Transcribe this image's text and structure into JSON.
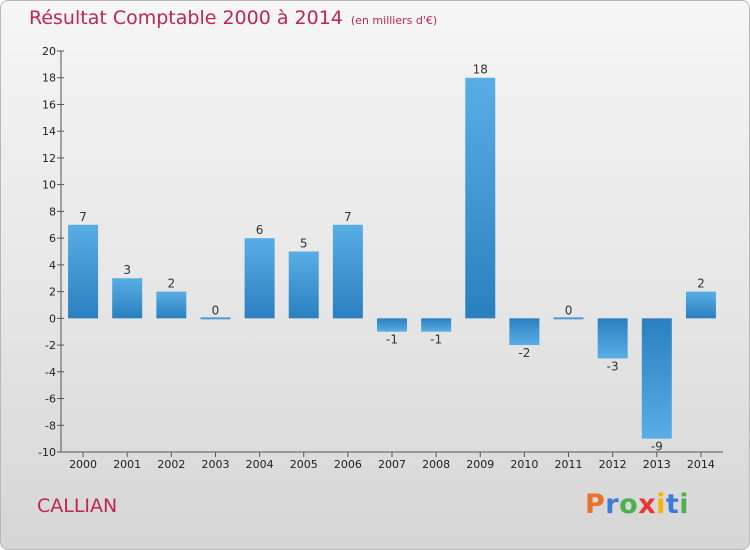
{
  "header": {
    "title": "Résultat Comptable 2000 à 2014",
    "subtitle": "(en milliers d'€)"
  },
  "footer": {
    "commune": "CALLIAN",
    "logo_letters": [
      "P",
      "r",
      "o",
      "x",
      "i",
      "t",
      "i"
    ],
    "logo_colors": [
      "#e8702a",
      "#3a7bd5",
      "#4caf50",
      "#e53935",
      "#f5b400",
      "#3a7bd5",
      "#4caf50"
    ]
  },
  "colors": {
    "title": "#c0264f",
    "bar_light": "#5aaee6",
    "bar_dark": "#2a7fbf"
  },
  "chart_data": {
    "type": "bar",
    "title": "Résultat Comptable 2000 à 2014",
    "subtitle": "(en milliers d'€)",
    "categories": [
      "2000",
      "2001",
      "2002",
      "2003",
      "2004",
      "2005",
      "2006",
      "2007",
      "2008",
      "2009",
      "2010",
      "2011",
      "2012",
      "2013",
      "2014"
    ],
    "values": [
      7,
      3,
      2,
      0,
      6,
      5,
      7,
      -1,
      -1,
      18,
      -2,
      0,
      -3,
      -9,
      2
    ],
    "ylim": [
      -10,
      20
    ],
    "yticks": [
      -10,
      -8,
      -6,
      -4,
      -2,
      0,
      2,
      4,
      6,
      8,
      10,
      12,
      14,
      16,
      18,
      20
    ],
    "xlabel": "",
    "ylabel": "",
    "grid": false
  }
}
